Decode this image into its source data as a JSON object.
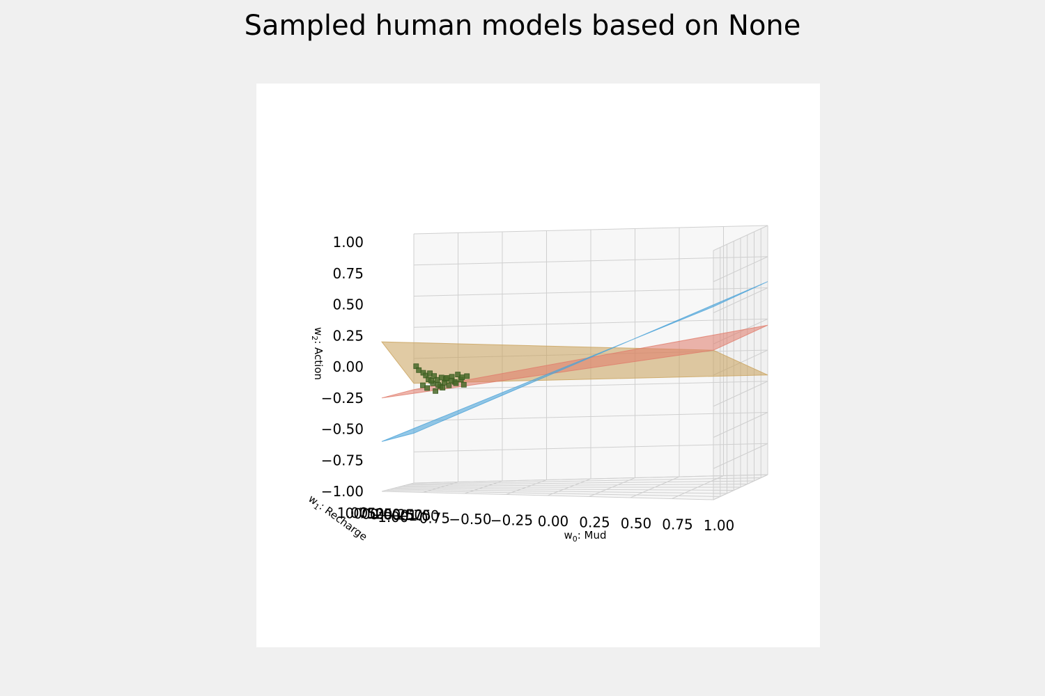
{
  "figure": {
    "title": "Sampled human models based on None",
    "background": "#f0f0f0",
    "axes_background": "#ffffff"
  },
  "chart_data": {
    "type": "scatter-3d-with-planes",
    "title": "Sampled human models based on None",
    "xlabel": "w0: Mud",
    "ylabel": "w1: Recharge",
    "zlabel": "w2: Action",
    "xlim": [
      -1.0,
      1.0
    ],
    "ylim": [
      -1.0,
      1.0
    ],
    "zlim": [
      -1.0,
      1.0
    ],
    "grid": true,
    "x_tick_labels": [
      "−1.00",
      "−0.75",
      "−0.50",
      "−0.25",
      "0.00",
      "0.25",
      "0.50",
      "0.75",
      "1.00"
    ],
    "y_tick_labels": [
      "1.00",
      "0.75",
      "0.50",
      "0.25",
      "0.00",
      "−0.25",
      "−0.50",
      "−0.75",
      "−1.00"
    ],
    "z_tick_labels": [
      "1.00",
      "0.75",
      "0.50",
      "0.25",
      "0.00",
      "−0.25",
      "−0.50",
      "−0.75",
      "−1.00"
    ],
    "planes": [
      {
        "color": "#c9a15a",
        "opacity": 0.55,
        "corner_z": {
          "x_neg_y_neg": -0.2,
          "x_pos_y_neg": -0.2,
          "x_pos_y_pos": 0.2,
          "x_neg_y_pos": 0.2
        }
      },
      {
        "color": "#e07a6a",
        "opacity": 0.55,
        "corner_z": {
          "x_neg_y_neg": -0.25,
          "x_pos_y_neg": 0.2,
          "x_pos_y_pos": 0.2,
          "x_neg_y_pos": -0.25
        }
      },
      {
        "color": "#4ba3d8",
        "opacity": 0.6,
        "corner_z": {
          "x_neg_y_neg": -0.6,
          "x_pos_y_neg": 0.55,
          "x_pos_y_pos": 0.55,
          "x_neg_y_pos": -0.6
        }
      }
    ],
    "points": {
      "color": "#4a6b2a",
      "x": [
        -0.95,
        -0.93,
        -0.9,
        -0.88,
        -0.86,
        -0.85,
        -0.83,
        -0.82,
        -0.8,
        -0.78,
        -0.77,
        -0.75,
        -0.74,
        -0.72,
        -0.7,
        -0.68,
        -0.66,
        -0.64,
        -0.62,
        -0.6,
        -0.9,
        -0.87,
        -0.84,
        -0.81,
        -0.79,
        -0.76,
        -0.73,
        -0.7,
        -0.67,
        -0.63
      ],
      "y": [
        -0.6,
        -0.55,
        -0.5,
        -0.45,
        -0.4,
        -0.38,
        -0.35,
        -0.32,
        -0.3,
        -0.28,
        -0.25,
        -0.22,
        -0.2,
        -0.18,
        -0.15,
        -0.12,
        -0.1,
        -0.08,
        -0.05,
        -0.03,
        -0.48,
        -0.42,
        -0.36,
        -0.3,
        -0.26,
        -0.21,
        -0.17,
        -0.13,
        -0.09,
        -0.05
      ],
      "z": [
        -0.05,
        -0.08,
        -0.1,
        -0.12,
        -0.15,
        -0.1,
        -0.18,
        -0.12,
        -0.15,
        -0.2,
        -0.13,
        -0.17,
        -0.14,
        -0.19,
        -0.12,
        -0.16,
        -0.1,
        -0.14,
        -0.18,
        -0.11,
        -0.2,
        -0.22,
        -0.16,
        -0.24,
        -0.19,
        -0.21,
        -0.13,
        -0.15,
        -0.17,
        -0.12
      ]
    }
  }
}
